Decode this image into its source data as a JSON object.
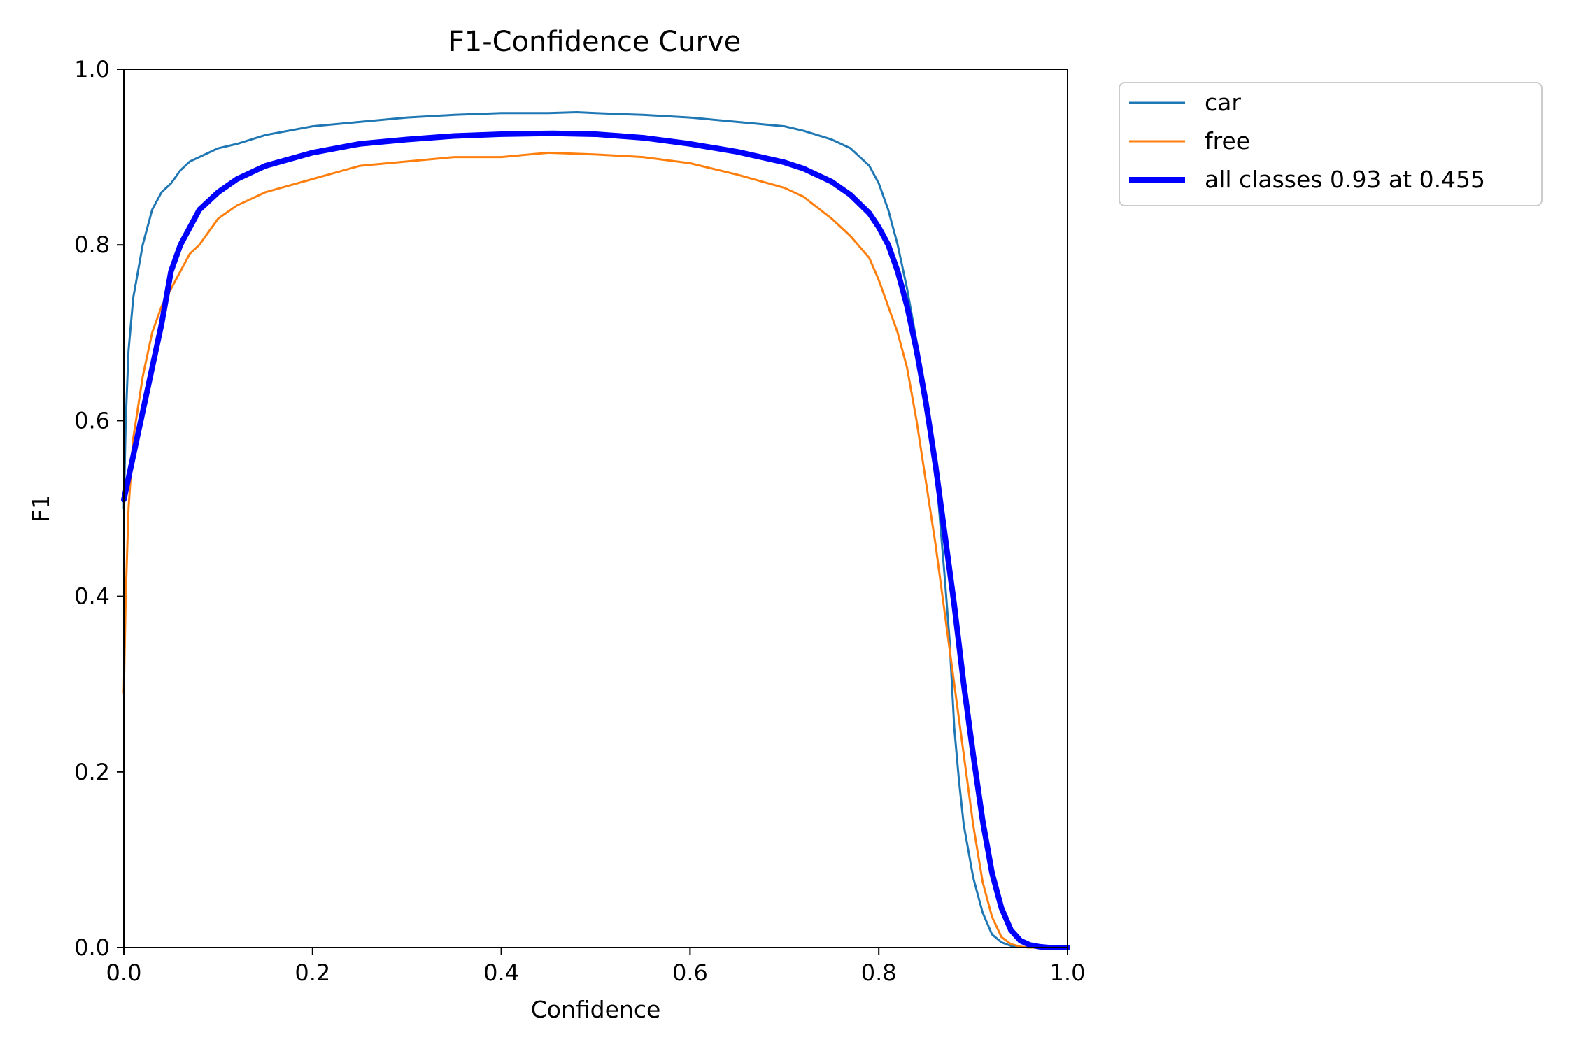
{
  "chart_data": {
    "type": "line",
    "title": "F1-Confidence Curve",
    "xlabel": "Confidence",
    "ylabel": "F1",
    "xlim": [
      0.0,
      1.0
    ],
    "ylim": [
      0.0,
      1.0
    ],
    "xticks": [
      "0.0",
      "0.2",
      "0.4",
      "0.6",
      "0.8",
      "1.0"
    ],
    "yticks": [
      "0.0",
      "0.2",
      "0.4",
      "0.6",
      "0.8",
      "1.0"
    ],
    "grid": false,
    "legend_position": "outside-top-right",
    "series": [
      {
        "name": "car",
        "color": "#1f77b4",
        "x": [
          0.0,
          0.002,
          0.005,
          0.01,
          0.015,
          0.02,
          0.03,
          0.04,
          0.05,
          0.06,
          0.07,
          0.08,
          0.1,
          0.12,
          0.15,
          0.2,
          0.25,
          0.3,
          0.35,
          0.4,
          0.45,
          0.48,
          0.5,
          0.55,
          0.6,
          0.65,
          0.7,
          0.72,
          0.75,
          0.77,
          0.79,
          0.8,
          0.81,
          0.82,
          0.83,
          0.84,
          0.85,
          0.86,
          0.87,
          0.875,
          0.88,
          0.885,
          0.89,
          0.9,
          0.91,
          0.92,
          0.93,
          0.94,
          0.95,
          0.96,
          0.97,
          0.98,
          1.0
        ],
        "y": [
          0.5,
          0.6,
          0.68,
          0.74,
          0.77,
          0.8,
          0.84,
          0.86,
          0.87,
          0.885,
          0.895,
          0.9,
          0.91,
          0.915,
          0.925,
          0.935,
          0.94,
          0.945,
          0.948,
          0.95,
          0.95,
          0.951,
          0.95,
          0.948,
          0.945,
          0.94,
          0.935,
          0.93,
          0.92,
          0.91,
          0.89,
          0.87,
          0.84,
          0.8,
          0.75,
          0.69,
          0.62,
          0.55,
          0.42,
          0.35,
          0.25,
          0.19,
          0.14,
          0.08,
          0.04,
          0.015,
          0.006,
          0.002,
          0.001,
          0.0,
          0.0,
          0.0,
          0.0
        ]
      },
      {
        "name": "free",
        "color": "#ff7f0e",
        "x": [
          0.0,
          0.002,
          0.005,
          0.01,
          0.02,
          0.03,
          0.04,
          0.05,
          0.06,
          0.07,
          0.08,
          0.1,
          0.12,
          0.15,
          0.2,
          0.25,
          0.3,
          0.35,
          0.4,
          0.45,
          0.5,
          0.55,
          0.6,
          0.65,
          0.7,
          0.72,
          0.75,
          0.77,
          0.79,
          0.8,
          0.81,
          0.82,
          0.83,
          0.84,
          0.85,
          0.86,
          0.87,
          0.88,
          0.89,
          0.9,
          0.91,
          0.92,
          0.93,
          0.94,
          0.95,
          0.96,
          1.0
        ],
        "y": [
          0.29,
          0.4,
          0.5,
          0.58,
          0.65,
          0.7,
          0.73,
          0.75,
          0.77,
          0.79,
          0.8,
          0.83,
          0.845,
          0.86,
          0.875,
          0.89,
          0.895,
          0.9,
          0.9,
          0.905,
          0.903,
          0.9,
          0.893,
          0.88,
          0.865,
          0.855,
          0.83,
          0.81,
          0.785,
          0.76,
          0.73,
          0.7,
          0.66,
          0.6,
          0.53,
          0.46,
          0.38,
          0.3,
          0.22,
          0.14,
          0.075,
          0.035,
          0.012,
          0.004,
          0.001,
          0.0,
          0.0
        ]
      },
      {
        "name": "all classes 0.93 at 0.455",
        "color": "#0000ff",
        "x": [
          0.0,
          0.01,
          0.02,
          0.03,
          0.04,
          0.05,
          0.06,
          0.07,
          0.08,
          0.1,
          0.12,
          0.15,
          0.2,
          0.25,
          0.3,
          0.35,
          0.4,
          0.455,
          0.5,
          0.55,
          0.6,
          0.65,
          0.7,
          0.72,
          0.75,
          0.77,
          0.79,
          0.8,
          0.81,
          0.82,
          0.83,
          0.84,
          0.85,
          0.86,
          0.87,
          0.88,
          0.89,
          0.9,
          0.91,
          0.92,
          0.93,
          0.94,
          0.95,
          0.96,
          0.97,
          0.98,
          1.0
        ],
        "y": [
          0.51,
          0.56,
          0.61,
          0.66,
          0.71,
          0.77,
          0.8,
          0.82,
          0.84,
          0.86,
          0.875,
          0.89,
          0.905,
          0.915,
          0.92,
          0.924,
          0.926,
          0.927,
          0.926,
          0.922,
          0.915,
          0.906,
          0.894,
          0.887,
          0.872,
          0.857,
          0.836,
          0.82,
          0.8,
          0.77,
          0.73,
          0.68,
          0.62,
          0.55,
          0.47,
          0.39,
          0.3,
          0.22,
          0.145,
          0.085,
          0.045,
          0.02,
          0.008,
          0.003,
          0.001,
          0.0,
          0.0
        ]
      }
    ]
  }
}
